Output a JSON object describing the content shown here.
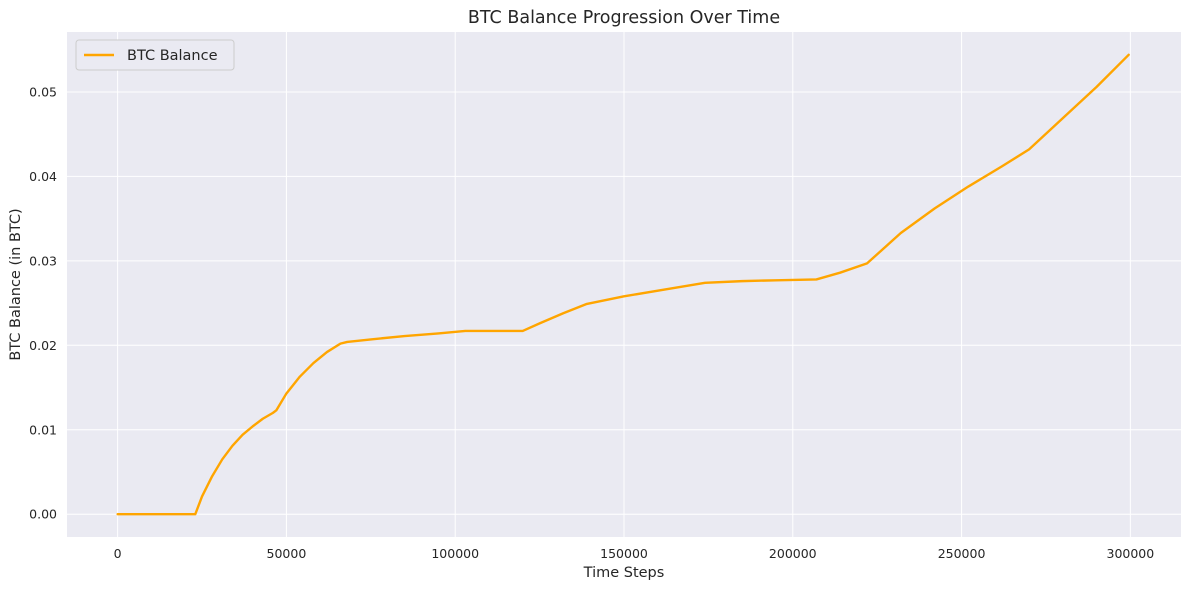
{
  "chart_data": {
    "type": "line",
    "title": "BTC Balance Progression Over Time",
    "xlabel": "Time Steps",
    "ylabel": "BTC Balance (in BTC)",
    "xlim": [
      -15000,
      315000
    ],
    "ylim": [
      -0.0027,
      0.0571
    ],
    "xticks": [
      0,
      50000,
      100000,
      150000,
      200000,
      250000,
      300000
    ],
    "xtick_labels": [
      "0",
      "50000",
      "100000",
      "150000",
      "200000",
      "250000",
      "300000"
    ],
    "yticks": [
      0.0,
      0.01,
      0.02,
      0.03,
      0.04,
      0.05
    ],
    "ytick_labels": [
      "0.00",
      "0.01",
      "0.02",
      "0.03",
      "0.04",
      "0.05"
    ],
    "grid": true,
    "legend_position": "top-left",
    "background_color": "#eaeaf2",
    "grid_color": "#ffffff",
    "series": [
      {
        "name": "BTC Balance",
        "color": "#ffa500",
        "x": [
          0,
          10000,
          23000,
          25000,
          28000,
          31000,
          34000,
          37000,
          40000,
          43000,
          46000,
          47000,
          50000,
          54000,
          58000,
          62000,
          66000,
          68000,
          75000,
          85000,
          95000,
          103000,
          110000,
          120000,
          125000,
          132000,
          139000,
          150000,
          162000,
          174000,
          185000,
          195000,
          207000,
          214000,
          222000,
          232000,
          242000,
          252000,
          262000,
          270000,
          280000,
          290000,
          299500
        ],
        "y": [
          0.0,
          0.0,
          0.0,
          0.0021,
          0.0045,
          0.0065,
          0.0081,
          0.0094,
          0.0104,
          0.0113,
          0.012,
          0.0123,
          0.0143,
          0.0163,
          0.0179,
          0.0192,
          0.0202,
          0.0204,
          0.0207,
          0.0211,
          0.0214,
          0.0217,
          0.0217,
          0.0217,
          0.0226,
          0.0238,
          0.0249,
          0.0258,
          0.0266,
          0.0274,
          0.0276,
          0.0277,
          0.0278,
          0.0286,
          0.0297,
          0.0333,
          0.0362,
          0.0388,
          0.0412,
          0.0432,
          0.0469,
          0.0506,
          0.0544
        ]
      }
    ]
  }
}
